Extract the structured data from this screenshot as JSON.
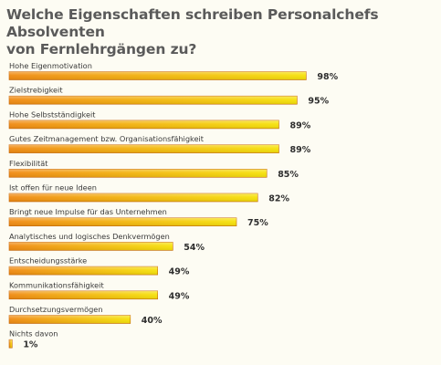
{
  "header": {
    "title_line1": "Welche Eigenschaften schreiben Personalchefs Absolventen",
    "title_line2": "von Fernlehrgängen zu?"
  },
  "colors": {
    "background": "#fdfcf3",
    "bar_start": "#f08a12",
    "bar_end": "#f6e20a",
    "bar_stroke": "#c9670a",
    "title": "#5a5a5a",
    "text": "#3a3a3a"
  },
  "chart_data": {
    "type": "bar",
    "orientation": "horizontal",
    "title": "Welche Eigenschaften schreiben Personalchefs Absolventen von Fernlehrgängen zu?",
    "xlim": [
      0,
      100
    ],
    "grid": false,
    "legend": false,
    "categories": [
      "Hohe Eigenmotivation",
      "Zielstrebigkeit",
      "Hohe Selbstständigkeit",
      "Gutes Zeitmanagement bzw. Organisationsfähigkeit",
      "Flexibilität",
      "Ist offen für neue Ideen",
      "Bringt neue Impulse für das Unternehmen",
      "Analytisches und logisches Denkvermögen",
      "Entscheidungsstärke",
      "Kommunikationsfähigkeit",
      "Durchsetzungsvermögen",
      "Nichts davon"
    ],
    "values": [
      98,
      95,
      89,
      89,
      85,
      82,
      75,
      54,
      49,
      49,
      40,
      1
    ],
    "value_labels": [
      "98%",
      "95%",
      "89%",
      "89%",
      "85%",
      "82%",
      "75%",
      "54%",
      "49%",
      "49%",
      "40%",
      "1%"
    ]
  }
}
